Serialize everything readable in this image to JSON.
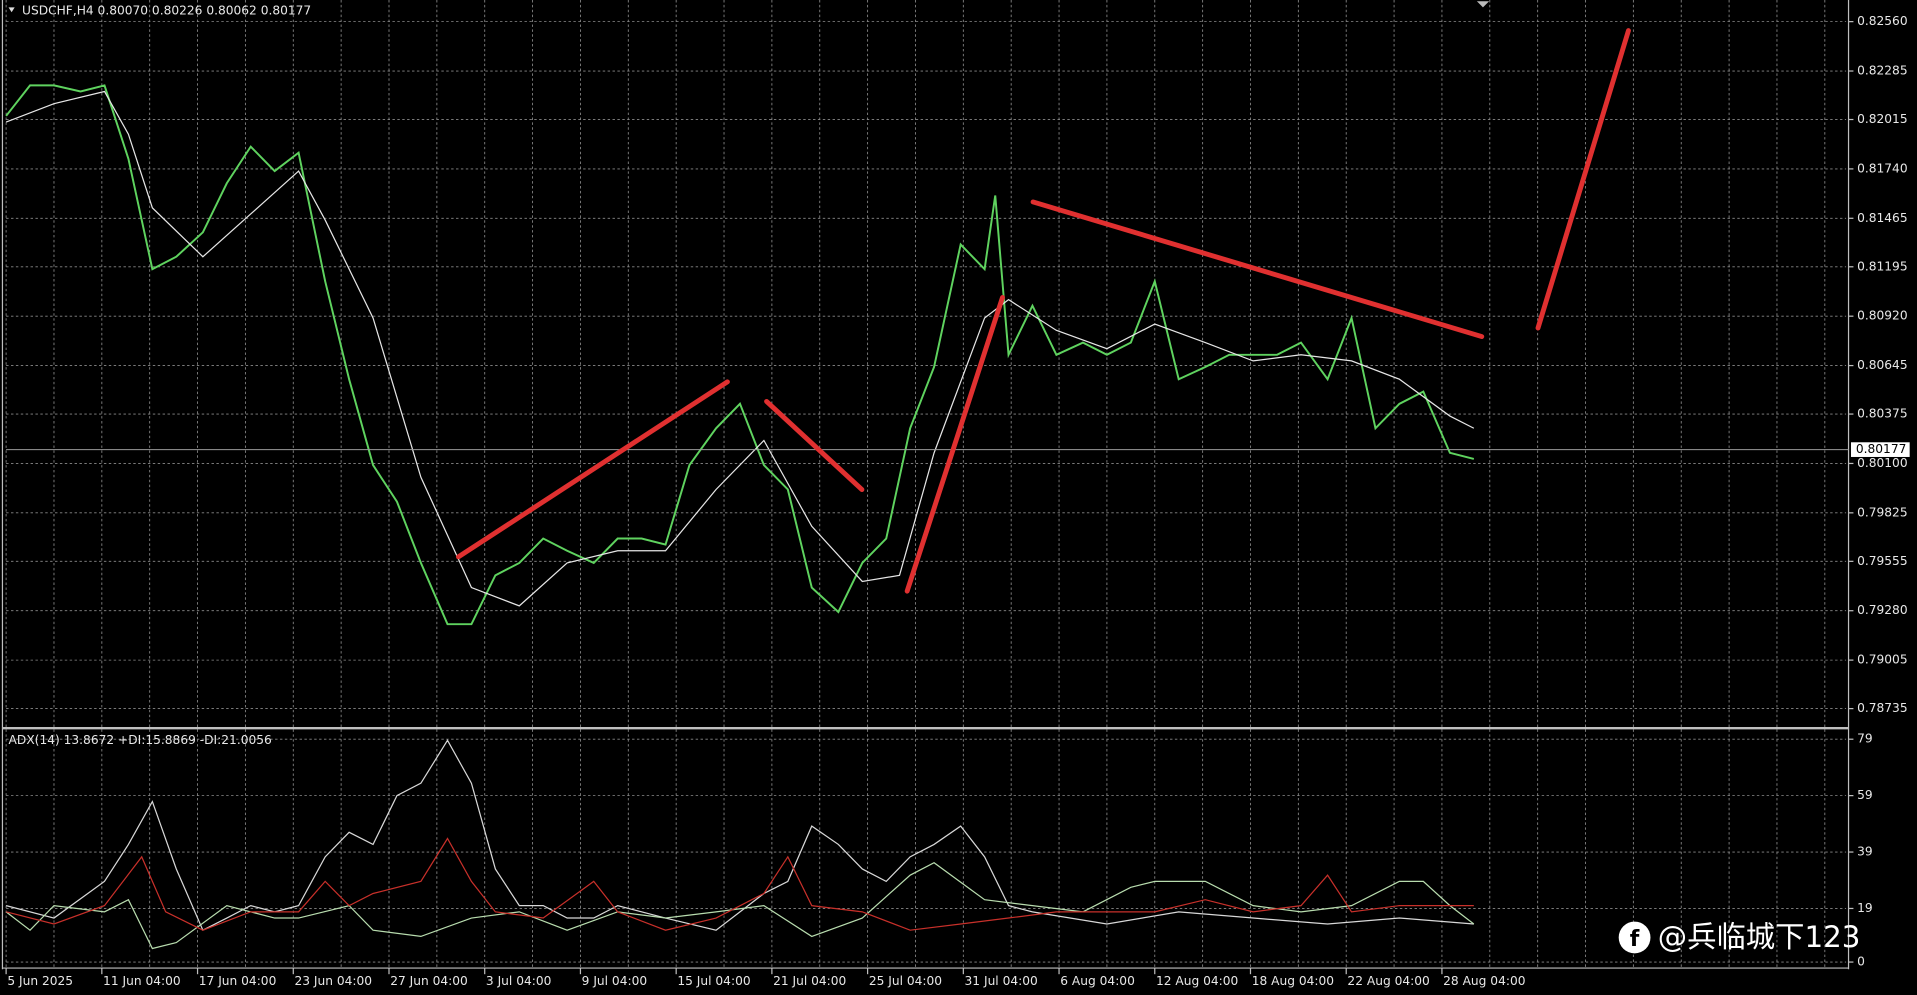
{
  "chart_data": [
    {
      "type": "line",
      "title": "USDCHF,H4  0.80070 0.80226 0.80062 0.80177",
      "xlim": [
        0,
        692
      ],
      "ylim": [
        0.7866,
        0.8266
      ],
      "yticks": [
        {
          "value": 0.8256,
          "label": "0.82560"
        },
        0.82285,
        0.82015,
        {
          "value": 0.8174,
          "label": "0.81740"
        },
        0.81465,
        0.81195,
        {
          "value": 0.8092,
          "label": "0.80920"
        },
        0.80645,
        0.80375,
        {
          "value": 0.801,
          "label": "0.80100"
        },
        0.79825,
        0.79555,
        {
          "value": 0.7928,
          "label": "0.79280"
        },
        0.79005,
        0.78735
      ],
      "last_price": 0.80177,
      "series": [
        {
          "color": "#5fd35f",
          "x": [
            0,
            9,
            18,
            28,
            37,
            46,
            55,
            64,
            74,
            83,
            92,
            101,
            110,
            120,
            129,
            138,
            147,
            156,
            166,
            175,
            184,
            193,
            202,
            211,
            221,
            230,
            239,
            248,
            257,
            267,
            276,
            285,
            294,
            303,
            313,
            322,
            331,
            340,
            349,
            359,
            368,
            372,
            377,
            386,
            395,
            405,
            414,
            423,
            432,
            441,
            451,
            460,
            469,
            478,
            487,
            497,
            506,
            515,
            524,
            533,
            543,
            552
          ],
          "values": [
            0.82035,
            0.82205,
            0.82205,
            0.82171,
            0.82205,
            0.81796,
            0.81182,
            0.81251,
            0.81387,
            0.8166,
            0.81864,
            0.81728,
            0.8183,
            0.81114,
            0.80569,
            0.80091,
            0.79887,
            0.79546,
            0.79205,
            0.79205,
            0.79477,
            0.79546,
            0.79682,
            0.79614,
            0.79546,
            0.79682,
            0.79682,
            0.79648,
            0.80091,
            0.80296,
            0.80432,
            0.80091,
            0.79955,
            0.79409,
            0.79273,
            0.79546,
            0.79682,
            0.80296,
            0.80637,
            0.81319,
            0.81182,
            0.81592,
            0.80705,
            0.80978,
            0.80705,
            0.80773,
            0.80705,
            0.80773,
            0.81114,
            0.80569,
            0.80637,
            0.80705,
            0.80705,
            0.80705,
            0.80773,
            0.80569,
            0.8091,
            0.80296,
            0.80432,
            0.805,
            0.80159,
            0.80125
          ]
        },
        {
          "color": "#e6e6e6",
          "x": [
            0,
            18,
            37,
            46,
            55,
            74,
            92,
            110,
            120,
            138,
            156,
            175,
            193,
            211,
            230,
            248,
            267,
            285,
            303,
            322,
            336,
            349,
            368,
            377,
            395,
            414,
            432,
            451,
            469,
            487,
            506,
            524,
            543,
            552
          ],
          "values": [
            0.82001,
            0.82103,
            0.82171,
            0.81933,
            0.81523,
            0.81251,
            0.81489,
            0.81728,
            0.81455,
            0.8091,
            0.80023,
            0.79409,
            0.79307,
            0.79546,
            0.79614,
            0.79614,
            0.79955,
            0.80228,
            0.7975,
            0.79443,
            0.79477,
            0.80159,
            0.8091,
            0.81012,
            0.80841,
            0.80739,
            0.80876,
            0.80773,
            0.80671,
            0.80705,
            0.80671,
            0.80569,
            0.80364,
            0.80296
          ]
        }
      ]
    },
    {
      "type": "line",
      "title": "ADX(14) 13.8672 +DI:15.8869 -DI:21.0056",
      "xlim": [
        0,
        692
      ],
      "ylim": [
        -1.7,
        81.6
      ],
      "yticks": [
        79,
        59,
        39,
        19,
        0
      ],
      "xticks": [
        {
          "value": 0,
          "label": "5 Jun 2025"
        },
        {
          "value": 36,
          "label": "11 Jun 04:00"
        },
        {
          "value": 72,
          "label": "17 Jun 04:00"
        },
        {
          "value": 108,
          "label": "23 Jun 04:00"
        },
        {
          "value": 144,
          "label": "27 Jun 04:00"
        },
        {
          "value": 180,
          "label": "3 Jul 04:00"
        },
        {
          "value": 216,
          "label": "9 Jul 04:00"
        },
        {
          "value": 252,
          "label": "15 Jul 04:00"
        },
        {
          "value": 288,
          "label": "21 Jul 04:00"
        },
        {
          "value": 324,
          "label": "25 Jul 04:00"
        },
        {
          "value": 360,
          "label": "31 Jul 04:00"
        },
        {
          "value": 396,
          "label": "6 Aug 04:00"
        },
        {
          "value": 432,
          "label": "12 Aug 04:00"
        },
        {
          "value": 468,
          "label": "18 Aug 04:00"
        },
        {
          "value": 504,
          "label": "22 Aug 04:00"
        },
        {
          "value": 540,
          "label": "28 Aug 04:00"
        }
      ],
      "series": [
        {
          "color": "#d8d8d8",
          "x": [
            0,
            18,
            37,
            46,
            55,
            64,
            74,
            83,
            92,
            101,
            110,
            120,
            129,
            138,
            147,
            156,
            166,
            175,
            184,
            193,
            202,
            211,
            221,
            230,
            248,
            267,
            285,
            294,
            303,
            313,
            322,
            331,
            340,
            349,
            359,
            368,
            377,
            386,
            414,
            441,
            469,
            497,
            524,
            552
          ],
          "values": [
            20.0,
            15.6,
            28.6,
            41.7,
            56.9,
            33.0,
            11.3,
            15.6,
            20.0,
            17.8,
            20.0,
            37.3,
            46.0,
            41.7,
            59.0,
            63.4,
            78.6,
            63.4,
            33.0,
            20.0,
            20.0,
            15.6,
            15.6,
            20.0,
            15.6,
            11.3,
            24.3,
            28.6,
            48.2,
            41.7,
            33.0,
            28.6,
            37.3,
            41.7,
            48.2,
            37.3,
            20.0,
            17.8,
            13.5,
            17.8,
            15.6,
            13.5,
            15.6,
            13.5
          ]
        },
        {
          "color": "#b8dcae",
          "x": [
            0,
            9,
            18,
            37,
            46,
            55,
            64,
            83,
            101,
            110,
            129,
            138,
            156,
            175,
            193,
            211,
            230,
            248,
            267,
            285,
            303,
            322,
            340,
            349,
            368,
            386,
            405,
            423,
            432,
            451,
            469,
            487,
            506,
            524,
            533,
            543,
            552
          ],
          "values": [
            17.8,
            11.3,
            20.0,
            17.8,
            22.1,
            4.8,
            6.9,
            20.0,
            15.6,
            15.6,
            20.0,
            11.3,
            9.1,
            15.6,
            17.8,
            11.3,
            17.8,
            15.6,
            17.8,
            20.0,
            9.1,
            15.6,
            30.8,
            35.2,
            22.1,
            20.0,
            17.8,
            26.5,
            28.6,
            28.6,
            20.0,
            17.8,
            20.0,
            28.6,
            28.6,
            20.0,
            13.5
          ]
        },
        {
          "color": "#c8302a",
          "x": [
            0,
            18,
            37,
            51,
            60,
            74,
            92,
            110,
            120,
            129,
            138,
            156,
            166,
            175,
            184,
            202,
            221,
            230,
            248,
            267,
            285,
            294,
            303,
            322,
            340,
            359,
            377,
            395,
            414,
            432,
            451,
            469,
            487,
            497,
            506,
            524,
            543,
            552
          ],
          "values": [
            17.8,
            13.5,
            20.0,
            37.3,
            17.8,
            11.3,
            17.8,
            17.8,
            28.6,
            20.0,
            24.3,
            28.6,
            43.8,
            28.6,
            17.8,
            15.6,
            28.6,
            17.8,
            11.3,
            15.6,
            24.3,
            37.3,
            20.0,
            17.8,
            11.3,
            13.5,
            15.6,
            17.8,
            17.8,
            17.8,
            22.1,
            17.8,
            20.0,
            30.8,
            17.8,
            20.0,
            20.0,
            20.0
          ]
        }
      ]
    }
  ],
  "watermark": "@兵临城下123"
}
